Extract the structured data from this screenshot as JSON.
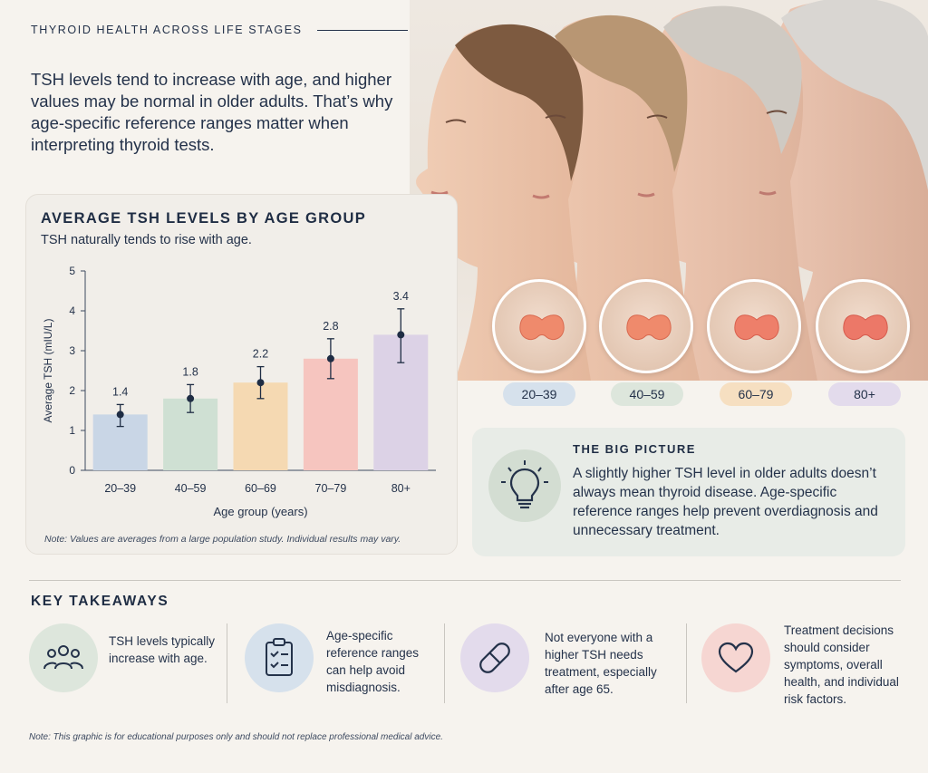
{
  "header": {
    "eyebrow": "THYROID HEALTH ACROSS LIFE STAGES",
    "intro": "TSH levels tend to increase with age, and higher values may be normal in older adults. That’s why age-specific reference ranges matter when interpreting thyroid tests."
  },
  "chart": {
    "title": "AVERAGE TSH LEVELS BY AGE GROUP",
    "subtitle": "TSH naturally tends to rise with age.",
    "note": "Note: Values are averages from a large population study. Individual results may vary."
  },
  "chart_data": {
    "type": "bar",
    "title": "AVERAGE TSH LEVELS BY AGE GROUP",
    "xlabel": "Age group (years)",
    "ylabel": "Average TSH (mIU/L)",
    "ylim": [
      0,
      5
    ],
    "yticks": [
      "0",
      "1",
      "2",
      "3",
      "4",
      "5"
    ],
    "categories": [
      "20–39",
      "40–59",
      "60–69",
      "70–79",
      "80+"
    ],
    "values": [
      1.4,
      1.8,
      2.2,
      2.8,
      3.4
    ],
    "value_labels": [
      "1.4",
      "1.8",
      "2.2",
      "2.8",
      "3.4"
    ],
    "error_bars": [
      [
        1.1,
        1.65
      ],
      [
        1.45,
        2.15
      ],
      [
        1.8,
        2.6
      ],
      [
        2.3,
        3.3
      ],
      [
        2.7,
        4.05
      ]
    ],
    "bar_colors": [
      "#c9d6e6",
      "#cfe0d3",
      "#f5d9b2",
      "#f6c5bf",
      "#dcd2e6"
    ],
    "grid": false,
    "legend": "none"
  },
  "age_badges": [
    {
      "label": "20–39",
      "color": "#d6e1ec"
    },
    {
      "label": "40–59",
      "color": "#dde6dc"
    },
    {
      "label": "60–79",
      "color": "#f6dfc1"
    },
    {
      "label": "80+",
      "color": "#e3dbec"
    }
  ],
  "big_picture": {
    "title": "THE BIG PICTURE",
    "text": "A slightly higher TSH level in older adults doesn’t always mean thyroid disease. Age-specific reference ranges help prevent overdiagnosis and unnecessary treatment.",
    "icon": "lightbulb-icon"
  },
  "takeaways": {
    "title": "KEY TAKEAWAYS",
    "items": [
      {
        "icon": "people-icon",
        "color": "#dde6dc",
        "text": "TSH levels typically increase with age."
      },
      {
        "icon": "clipboard-checklist-icon",
        "color": "#d6e1ec",
        "text": "Age-specific reference ranges can help avoid misdiagnosis."
      },
      {
        "icon": "pill-icon",
        "color": "#e3dbec",
        "text": "Not everyone with a higher TSH needs treatment, especially after age 65."
      },
      {
        "icon": "heart-icon",
        "color": "#f6d6d2",
        "text": "Treatment decisions should consider symptoms, overall health, and individual risk factors."
      }
    ]
  },
  "footnote": "Note: This graphic is for educational purposes only and should not replace professional medical advice."
}
